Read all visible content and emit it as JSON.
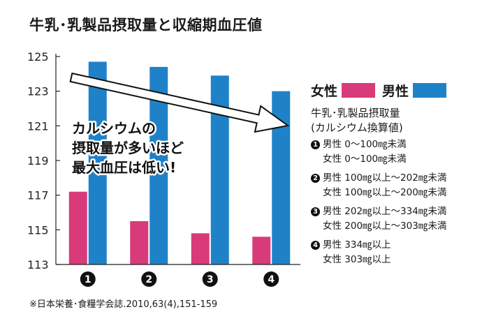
{
  "title": "牛乳･乳製品摂取量と収縮期血圧値",
  "annotation": [
    "カルシウムの",
    "摂取量が多いほど",
    "最大血圧は低い!"
  ],
  "legend": [
    {
      "label": "女性",
      "color": "#d93a7a"
    },
    {
      "label": "男性",
      "color": "#1f82c8"
    }
  ],
  "groups_heading": [
    "牛乳･乳製品摂取量",
    "(カルシウム換算値)"
  ],
  "groups": [
    {
      "number": "1",
      "male": "男性 0～100㎎未満",
      "female": "女性 0～100㎎未満"
    },
    {
      "number": "2",
      "male": "男性 100㎎以上～202㎎未満",
      "female": "女性 100㎎以上～200㎎未満"
    },
    {
      "number": "3",
      "male": "男性 202㎎以上～334㎎未満",
      "female": "女性 200㎎以上～303㎎未満"
    },
    {
      "number": "4",
      "male": "男性 334㎎以上",
      "female": "女性 303㎎以上"
    }
  ],
  "footnote": "※日本栄養･食糧学会誌.2010,63(4),151-159",
  "chart_data": {
    "type": "bar",
    "categories": [
      "1",
      "2",
      "3",
      "4"
    ],
    "series": [
      {
        "name": "女性",
        "color": "#d93a7a",
        "values": [
          117.2,
          115.5,
          114.8,
          114.6
        ]
      },
      {
        "name": "男性",
        "color": "#1f82c8",
        "values": [
          124.7,
          124.4,
          123.9,
          123.0
        ]
      }
    ],
    "yticks": [
      113,
      115,
      117,
      119,
      121,
      123,
      125
    ],
    "ylim": [
      113,
      125
    ],
    "grid": false,
    "legend_position": "right"
  }
}
